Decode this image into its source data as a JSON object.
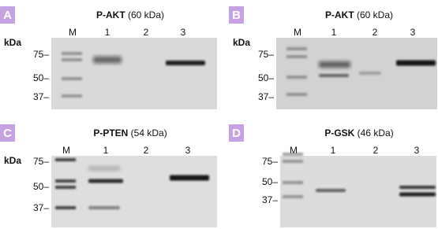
{
  "panels": [
    {
      "letter": "A",
      "title": "P-AKT",
      "title_suffix": "(60 kDa)",
      "lanes": [
        "M",
        "1",
        "2",
        "3"
      ],
      "unit": "kDa",
      "markers": [
        "75–",
        "50–",
        "37–"
      ]
    },
    {
      "letter": "B",
      "title": "P-AKT",
      "title_suffix": "(60 kDa)",
      "lanes": [
        "M",
        "1",
        "2",
        "3"
      ],
      "unit": "kDa",
      "markers": [
        "75–",
        "50–",
        "37–"
      ]
    },
    {
      "letter": "C",
      "title": "P-PTEN",
      "title_suffix": "(54 kDa)",
      "lanes": [
        "M",
        "1",
        "2",
        "3"
      ],
      "unit": "kDa",
      "markers": [
        "75–",
        "50–",
        "37–"
      ]
    },
    {
      "letter": "D",
      "title": "P-GSK",
      "title_suffix": "(46 kDa)",
      "lanes": [
        "M",
        "1",
        "2",
        "3"
      ],
      "markers": [
        "75–",
        "50–",
        "37–"
      ]
    }
  ]
}
